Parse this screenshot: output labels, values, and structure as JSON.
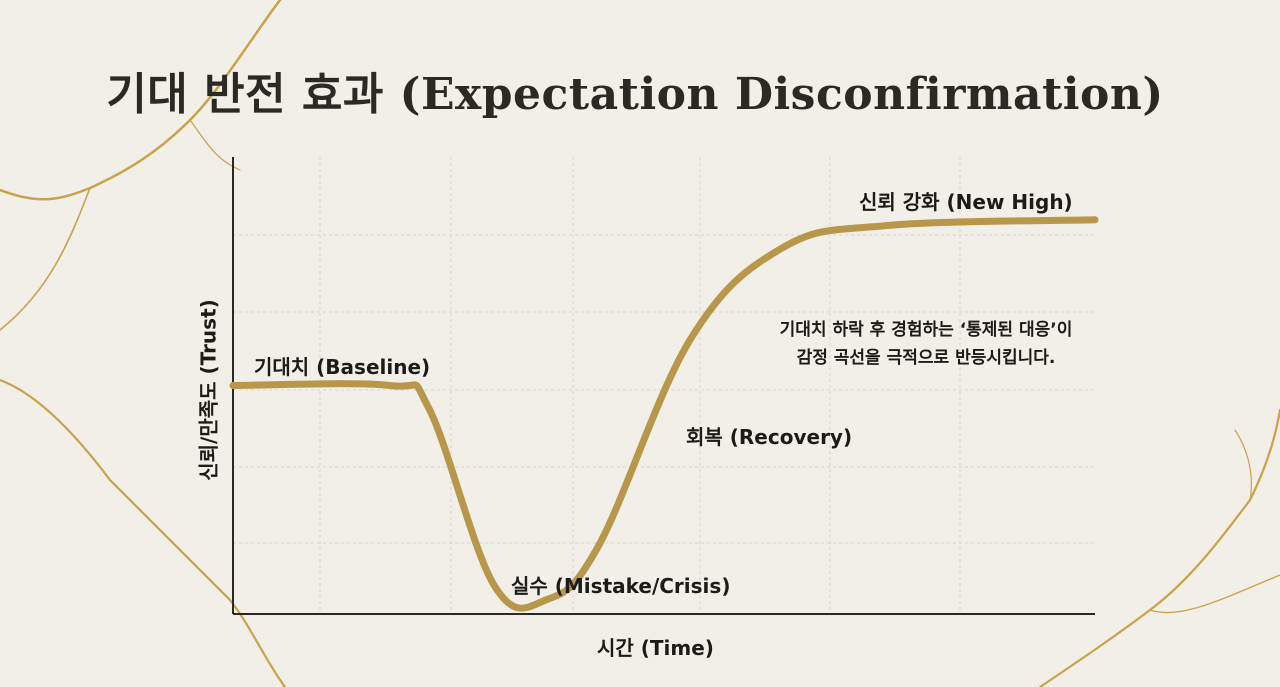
{
  "title": "기대 반전 효과 (Expectation Disconfirmation)",
  "colors": {
    "curve": "#b8974a",
    "axis": "#2b2924",
    "grid": "#d9d6cc",
    "text": "#1d1b18",
    "veins": "#c9a24a",
    "background": "#f1efe8"
  },
  "chart_data": {
    "type": "line",
    "xlabel": "시간 (Time)",
    "ylabel": "신뢰/만족도 (Trust)",
    "grid": true,
    "x_ticks_shown": false,
    "y_ticks_shown": false,
    "series": [
      {
        "points": [
          [
            0,
            4.0
          ],
          [
            1.2,
            4.0
          ],
          [
            1.5,
            3.6
          ],
          [
            2.0,
            0.5
          ],
          [
            2.4,
            0.25
          ],
          [
            2.8,
            1.2
          ],
          [
            3.5,
            4.8
          ],
          [
            4.2,
            6.4
          ],
          [
            5.0,
            6.8
          ],
          [
            6.6,
            6.9
          ]
        ]
      }
    ],
    "xlim": [
      0,
      6.6
    ],
    "ylim": [
      0,
      8
    ],
    "annotations": {
      "baseline": "기대치 (Baseline)",
      "mistake": "실수 (Mistake/Crisis)",
      "recovery": "회복 (Recovery)",
      "new_high": "신뢰 강화 (New High)",
      "note_line1": "기대치 하락 후 경험하는 ‘통제된 대응’이",
      "note_line2": "감정 곡선을 극적으로 반등시킵니다."
    }
  }
}
